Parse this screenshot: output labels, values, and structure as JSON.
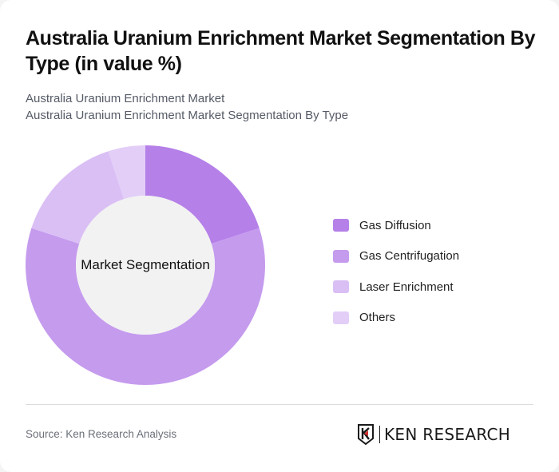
{
  "header": {
    "title": "Australia Uranium Enrichment Market Segmentation By Type (in value %)",
    "subtitle_line1": "Australia Uranium Enrichment Market",
    "subtitle_line2": "Australia Uranium Enrichment Market Segmentation By Type"
  },
  "chart": {
    "center_label": "Market Segmentation"
  },
  "legend": {
    "items": [
      {
        "label": "Gas Diffusion",
        "color": "#b580e8"
      },
      {
        "label": "Gas Centrifugation",
        "color": "#c59bee"
      },
      {
        "label": "Laser Enrichment",
        "color": "#dabff5"
      },
      {
        "label": "Others",
        "color": "#e2cef7"
      }
    ]
  },
  "footer": {
    "source": "Source: Ken Research Analysis",
    "logo_text": "KEN RESEARCH"
  },
  "chart_data": {
    "type": "pie",
    "variant": "donut",
    "title": "Australia Uranium Enrichment Market Segmentation By Type (in value %)",
    "subtitle": "Australia Uranium Enrichment Market Segmentation By Type",
    "center_label": "Market Segmentation",
    "categories": [
      "Gas Diffusion",
      "Gas Centrifugation",
      "Laser Enrichment",
      "Others"
    ],
    "values": [
      20,
      60,
      15,
      5
    ],
    "colors": [
      "#b580e8",
      "#c59bee",
      "#dabff5",
      "#e2cef7"
    ],
    "unit": "%",
    "legend_position": "right",
    "start_angle": "12 o'clock, clockwise"
  }
}
